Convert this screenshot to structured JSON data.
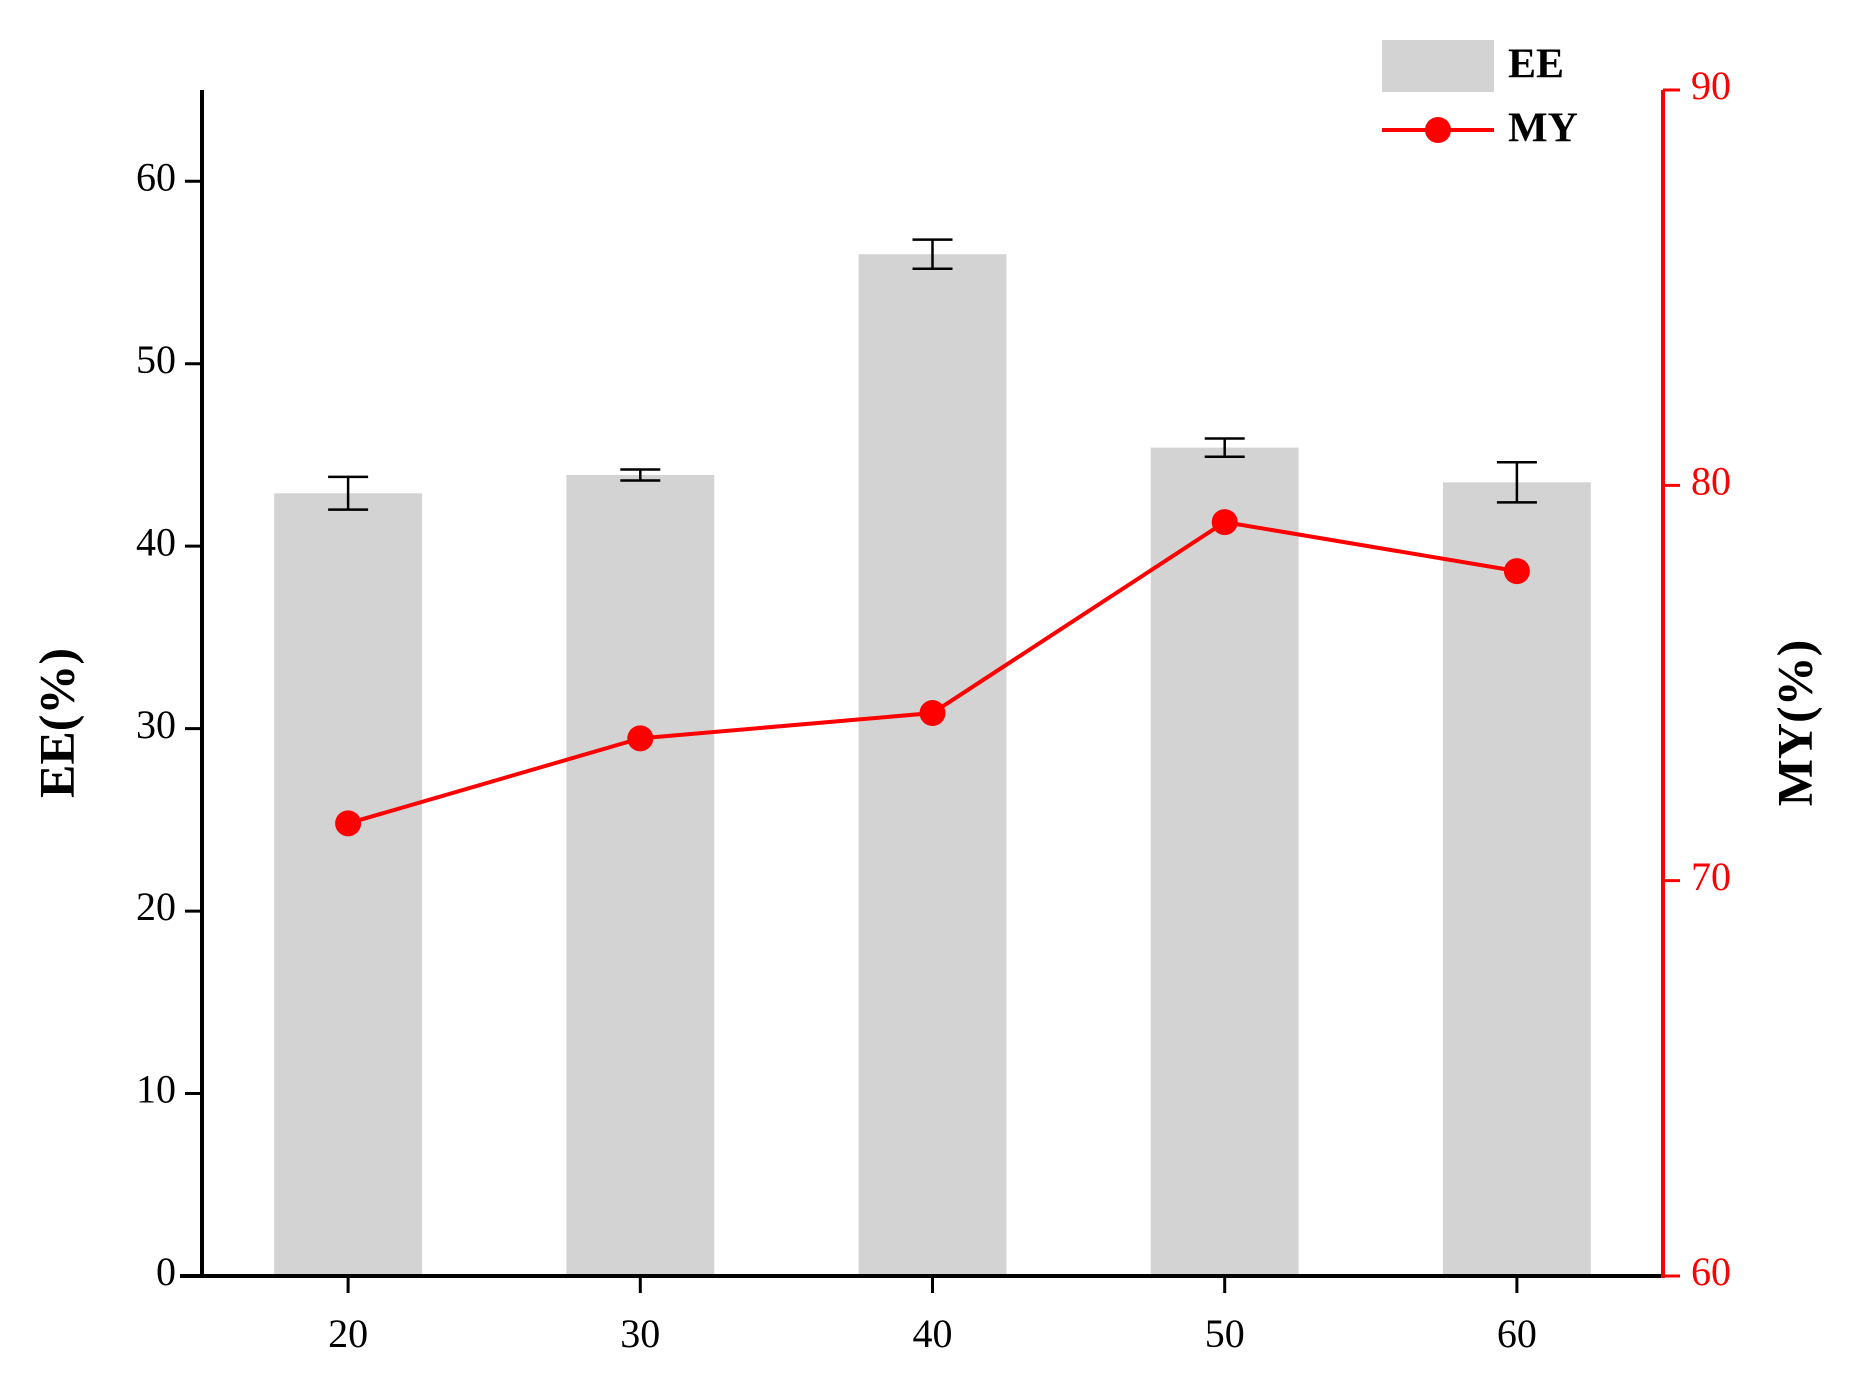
{
  "chart_data": {
    "type": "bar-line",
    "ylabel": "EE(%)",
    "y2label": "MY(%)",
    "categories": [
      "20",
      "30",
      "40",
      "50",
      "60"
    ],
    "ylim": [
      0,
      65
    ],
    "yticks": [
      0,
      10,
      20,
      30,
      40,
      50,
      60
    ],
    "y2lim": [
      60,
      90
    ],
    "y2ticks": [
      60,
      70,
      80,
      90
    ],
    "series": [
      {
        "name": "EE",
        "type": "bar",
        "color": "#d3d3d3",
        "values": [
          42.9,
          43.9,
          56.0,
          45.4,
          43.5
        ],
        "errors": [
          0.9,
          0.3,
          0.8,
          0.5,
          1.1
        ]
      },
      {
        "name": "MY",
        "type": "line",
        "axis": "y2",
        "color": "#ff0000",
        "values": [
          71.45,
          73.6,
          74.24,
          79.07,
          77.83
        ]
      }
    ]
  }
}
